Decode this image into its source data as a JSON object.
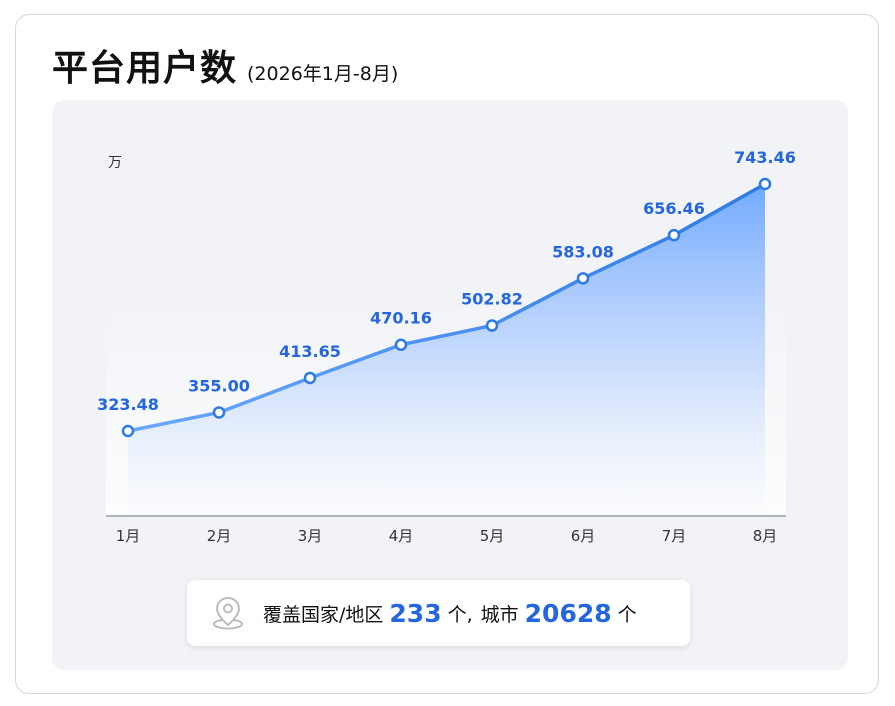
{
  "title": "平台用户数",
  "subtitle": "(2026年1月-8月)",
  "chart_data": {
    "type": "area",
    "unit_label": "万",
    "categories": [
      "1月",
      "2月",
      "3月",
      "4月",
      "5月",
      "6月",
      "7月",
      "8月"
    ],
    "values": [
      323.48,
      355.0,
      413.65,
      470.16,
      502.82,
      583.08,
      656.46,
      743.46
    ],
    "data_labels": [
      "323.48",
      "355.00",
      "413.65",
      "470.16",
      "502.82",
      "583.08",
      "656.46",
      "743.46"
    ],
    "grid": false,
    "legend": "none",
    "colors": {
      "line": "#2c7be5",
      "line_light": "#6aa8ff",
      "area_top": "#6aa5ff",
      "label": "#2466e0",
      "axis": "#9aa0a6"
    }
  },
  "footer": {
    "icon": "location-pin-icon",
    "coverage_label": "覆盖国家/地区",
    "country_count": "233",
    "unit1": "个,",
    "city_label": "城市",
    "city_count": "20628",
    "unit2": "个"
  }
}
